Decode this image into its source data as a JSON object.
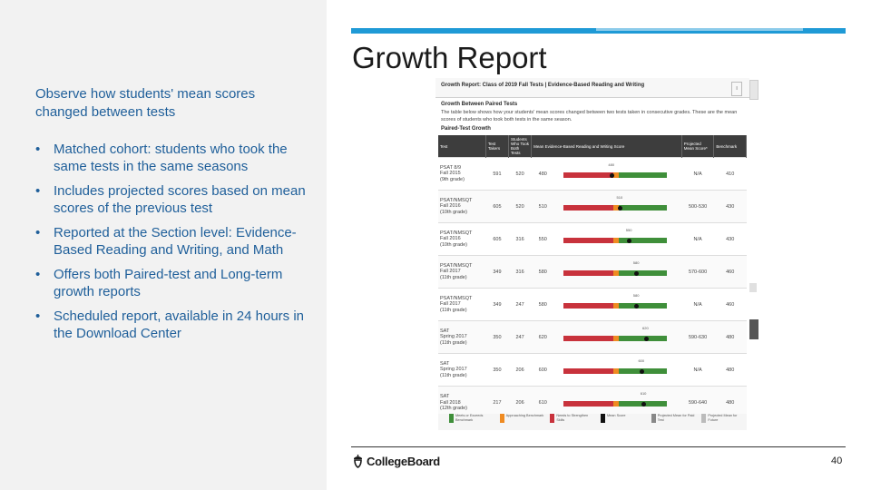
{
  "slide": {
    "title": "Growth Report",
    "intro": "Observe how students' mean scores changed between tests",
    "bullet_marker": "•",
    "bullets": [
      "Matched cohort: students who took the same tests in the same seasons",
      "Includes projected scores based on mean scores of the previous test",
      "Reported at the Section level: Evidence-Based Reading and Writing, and Math",
      "Offers both Paired-test and Long-term growth reports",
      "Scheduled report, available in 24 hours in the Download Center"
    ],
    "page_number": "40",
    "logo_text": "CollegeBoard"
  },
  "report": {
    "header": "Growth Report: Class of 2019 Fall Tests | Evidence-Based Reading and Writing",
    "header_edge": "l",
    "section_title": "Growth Between Paired Tests",
    "description": "The table below shows how your students' mean scores changed between two tests taken in consecutive grades. These are the mean scores of students who took both tests in the same season.",
    "subsection_title": "Paired-Test Growth",
    "columns": [
      "Test",
      "Test Takers",
      "Students Who Took Both Tests",
      "Mean Evidence-Based Reading and Writing Score",
      "",
      "Projected Mean Score*",
      "Benchmark"
    ],
    "rows": [
      {
        "test": [
          "PSAT 8/9",
          "Fall 2015",
          "(9th grade)"
        ],
        "takers": "591",
        "both": "520",
        "mean": "480",
        "projected": "N/A",
        "benchmark": "410",
        "score_label": "480",
        "score_pos": 0.47
      },
      {
        "test": [
          "PSAT/NMSQT",
          "Fall 2016",
          "(10th grade)"
        ],
        "takers": "605",
        "both": "520",
        "mean": "510",
        "projected": "500-530",
        "benchmark": "430",
        "score_label": "510",
        "score_pos": 0.55
      },
      {
        "test": [
          "PSAT/NMSQT",
          "Fall 2016",
          "(10th grade)"
        ],
        "takers": "605",
        "both": "316",
        "mean": "550",
        "projected": "N/A",
        "benchmark": "430",
        "score_label": "550",
        "score_pos": 0.64
      },
      {
        "test": [
          "PSAT/NMSQT",
          "Fall 2017",
          "(11th grade)"
        ],
        "takers": "349",
        "both": "316",
        "mean": "580",
        "projected": "570-600",
        "benchmark": "460",
        "score_label": "580",
        "score_pos": 0.71
      },
      {
        "test": [
          "PSAT/NMSQT",
          "Fall 2017",
          "(11th grade)"
        ],
        "takers": "349",
        "both": "247",
        "mean": "580",
        "projected": "N/A",
        "benchmark": "460",
        "score_label": "580",
        "score_pos": 0.71
      },
      {
        "test": [
          "SAT",
          "Spring 2017",
          "(11th grade)"
        ],
        "takers": "350",
        "both": "247",
        "mean": "620",
        "projected": "590-630",
        "benchmark": "480",
        "score_label": "620",
        "score_pos": 0.8
      },
      {
        "test": [
          "SAT",
          "Spring 2017",
          "(11th grade)"
        ],
        "takers": "350",
        "both": "206",
        "mean": "600",
        "projected": "N/A",
        "benchmark": "480",
        "score_label": "600",
        "score_pos": 0.76
      },
      {
        "test": [
          "SAT",
          "Fall 2018",
          "(12th grade)"
        ],
        "takers": "217",
        "both": "206",
        "mean": "610",
        "projected": "590-640",
        "benchmark": "480",
        "score_label": "610",
        "score_pos": 0.78
      }
    ],
    "legend": [
      {
        "label": "Meets or Exceeds Benchmark",
        "color": "#3f8f3a"
      },
      {
        "label": "Approaching Benchmark",
        "color": "#ef8b22"
      },
      {
        "label": "Needs to Strengthen Skills",
        "color": "#c8323c"
      },
      {
        "label": "Mean Score",
        "color": "#111111"
      },
      {
        "label": "Projected Mean for Paid Test",
        "color": "#888888"
      },
      {
        "label": "Projected Mean for Future",
        "color": "#bbbbbb"
      }
    ]
  },
  "colors": {
    "accent_blue": "#1f9ad6",
    "text_blue": "#1f5f9a",
    "bar_red": "#c8323c",
    "bar_orange": "#ef8b22",
    "bar_green": "#3f8f3a"
  }
}
